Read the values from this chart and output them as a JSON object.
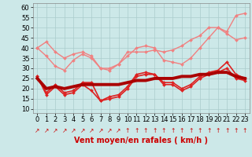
{
  "x": [
    0,
    1,
    2,
    3,
    4,
    5,
    6,
    7,
    8,
    9,
    10,
    11,
    12,
    13,
    14,
    15,
    16,
    17,
    18,
    19,
    20,
    21,
    22,
    23
  ],
  "series": [
    {
      "name": "light_pink_1",
      "y": [
        40,
        43,
        38,
        35,
        37,
        38,
        36,
        30,
        30,
        32,
        38,
        38,
        38,
        39,
        38,
        39,
        41,
        44,
        46,
        50,
        50,
        48,
        56,
        57
      ],
      "color": "#f08080",
      "lw": 1.0,
      "marker": "D",
      "ms": 2.0,
      "zorder": 2
    },
    {
      "name": "light_pink_2",
      "y": [
        40,
        36,
        31,
        29,
        34,
        37,
        35,
        30,
        29,
        32,
        36,
        40,
        41,
        40,
        34,
        33,
        32,
        35,
        40,
        45,
        50,
        47,
        44,
        45
      ],
      "color": "#f08080",
      "lw": 1.0,
      "marker": "D",
      "ms": 2.0,
      "zorder": 2
    },
    {
      "name": "red_1",
      "y": [
        26,
        18,
        22,
        18,
        19,
        23,
        23,
        14,
        16,
        17,
        21,
        27,
        28,
        27,
        23,
        23,
        20,
        22,
        26,
        28,
        29,
        33,
        27,
        25
      ],
      "color": "#dd2222",
      "lw": 1.2,
      "marker": "D",
      "ms": 2.0,
      "zorder": 3
    },
    {
      "name": "red_2",
      "y": [
        26,
        17,
        21,
        17,
        18,
        22,
        19,
        14,
        15,
        16,
        20,
        26,
        27,
        27,
        22,
        22,
        19,
        21,
        25,
        27,
        28,
        30,
        25,
        24
      ],
      "color": "#dd2222",
      "lw": 1.2,
      "marker": "D",
      "ms": 2.0,
      "zorder": 3
    },
    {
      "name": "trend",
      "y": [
        25,
        20,
        21,
        20,
        21,
        22,
        22,
        22,
        22,
        22,
        23,
        24,
        24,
        25,
        25,
        25,
        26,
        26,
        27,
        27,
        28,
        28,
        26,
        25
      ],
      "color": "#aa0000",
      "lw": 2.8,
      "marker": null,
      "ms": 0,
      "zorder": 4
    }
  ],
  "xlabel": "Vent moyen/en rafales ( km/h )",
  "ylabel_ticks": [
    10,
    15,
    20,
    25,
    30,
    35,
    40,
    45,
    50,
    55,
    60
  ],
  "ylim": [
    8,
    62
  ],
  "xlim": [
    -0.5,
    23.5
  ],
  "bg_color": "#cce8e8",
  "grid_color": "#aacccc",
  "xlabel_color": "#cc0000",
  "xlabel_fontsize": 7.0,
  "tick_fontsize": 6.0,
  "arrow_color": "#cc0000",
  "arrows": [
    "↗",
    "↗",
    "↗",
    "↗",
    "↗",
    "↗",
    "↗",
    "↗",
    "↗",
    "↗",
    "↑",
    "↑",
    "↑",
    "↑",
    "↑",
    "↑",
    "↑",
    "↑",
    "↑",
    "↑",
    "↑",
    "↑",
    "↑",
    "↑"
  ]
}
